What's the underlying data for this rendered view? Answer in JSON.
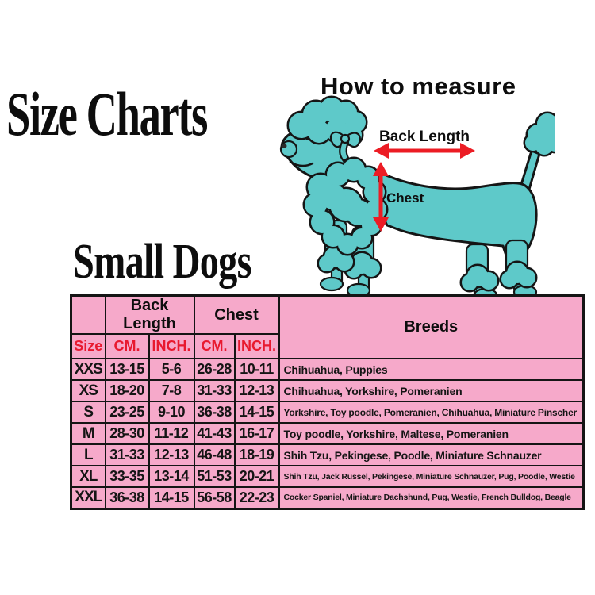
{
  "title": "Size Charts",
  "how_to_measure": {
    "heading": "How to measure",
    "back_length_label": "Back Length",
    "chest_label": "Chest"
  },
  "section_heading": "Small Dogs",
  "table": {
    "group_headers": {
      "back_length": "Back Length",
      "chest": "Chest",
      "breeds": "Breeds"
    },
    "sub_headers": {
      "size": "Size",
      "cm": "CM.",
      "inch": "INCH."
    },
    "rows": [
      {
        "size": "XXS",
        "back_cm": "13-15",
        "back_inch": "5-6",
        "chest_cm": "26-28",
        "chest_inch": "10-11",
        "breeds": "Chihuahua, Puppies"
      },
      {
        "size": "XS",
        "back_cm": "18-20",
        "back_inch": "7-8",
        "chest_cm": "31-33",
        "chest_inch": "12-13",
        "breeds": "Chihuahua, Yorkshire, Pomeranien"
      },
      {
        "size": "S",
        "back_cm": "23-25",
        "back_inch": "9-10",
        "chest_cm": "36-38",
        "chest_inch": "14-15",
        "breeds": "Yorkshire, Toy poodle, Pomeranien, Chihuahua, Miniature Pinscher"
      },
      {
        "size": "M",
        "back_cm": "28-30",
        "back_inch": "11-12",
        "chest_cm": "41-43",
        "chest_inch": "16-17",
        "breeds": "Toy poodle, Yorkshire, Maltese, Pomeranien"
      },
      {
        "size": "L",
        "back_cm": "31-33",
        "back_inch": "12-13",
        "chest_cm": "46-48",
        "chest_inch": "18-19",
        "breeds": "Shih Tzu, Pekingese, Poodle, Miniature Schnauzer"
      },
      {
        "size": "XL",
        "back_cm": "33-35",
        "back_inch": "13-14",
        "chest_cm": "51-53",
        "chest_inch": "20-21",
        "breeds": "Shih Tzu, Jack Russel, Pekingese, Miniature Schnauzer, Pug, Poodle, Westie"
      },
      {
        "size": "XXL",
        "back_cm": "36-38",
        "back_inch": "14-15",
        "chest_cm": "56-58",
        "chest_inch": "22-23",
        "breeds": "Cocker Spaniel, Miniature Dachshund, Pug, Westie, French Bulldog, Beagle"
      }
    ]
  },
  "colors": {
    "pink": "#f6a9ca",
    "red": "#e8192f",
    "arrow": "#ec1c24",
    "teal": "#5ec9c9",
    "ink": "#151515",
    "bg": "#ffffff"
  }
}
